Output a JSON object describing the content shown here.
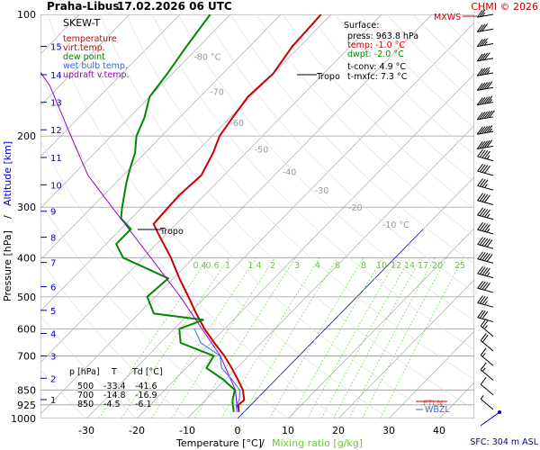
{
  "header": {
    "station": "Praha-Libus",
    "datetime": "17.02.2026 06 UTC",
    "copyright": "CHMI © 2026"
  },
  "legend": {
    "title": "SKEW-T",
    "items": [
      {
        "label": "temperature",
        "color": "#cc0000"
      },
      {
        "label": "virt.temp.",
        "color": "#cc0000"
      },
      {
        "label": "dew point",
        "color": "#008800"
      },
      {
        "label": "wet bulb temp.",
        "color": "#3366ff"
      },
      {
        "label": "updraft v.temp.",
        "color": "#9900cc"
      }
    ]
  },
  "surface": {
    "title": "Surface:",
    "press": "press: 963.8 hPa",
    "temp": "temp: -1.0 °C",
    "dwpt": "dwpt: -2.0 °C",
    "tconv": "t-conv: 4.9 °C",
    "tmxfc": "t-mxfc: 7.3 °C"
  },
  "table": {
    "header": [
      "p [hPa]",
      "T",
      "Td [°C]"
    ],
    "rows": [
      [
        "500",
        "-33.4",
        "-41.6"
      ],
      [
        "700",
        "-14.8",
        "-16.9"
      ],
      [
        "850",
        "-4.5",
        "-6.1"
      ]
    ]
  },
  "axes": {
    "xlabel_temp": "Temperature [°C]",
    "xlabel_sep": "/",
    "xlabel_mix": "Mixing ratio [g/kg]",
    "ylabel_pressure": "Pressure [hPa]",
    "ylabel_sep": "/",
    "ylabel_altitude": "Altitude [km]",
    "sfc": "SFC: 304 m ASL"
  },
  "markers": {
    "tropo1": "Tropo",
    "tropo2": "Tropo",
    "mxws": "MXWS",
    "ftln": "FTLN",
    "wbzl": "WBZL"
  },
  "chart_data": {
    "type": "line",
    "title": "SKEW-T",
    "xlabel": "Temperature [°C] / Mixing ratio [g/kg]",
    "ylabel": "Pressure [hPa] / Altitude [km]",
    "xlim": [
      -35,
      43
    ],
    "ylim": [
      1000,
      100
    ],
    "y_scale": "log",
    "pressure_ticks": [
      100,
      200,
      300,
      400,
      500,
      600,
      700,
      850,
      925,
      1000
    ],
    "temp_ticks": [
      -30,
      -20,
      -10,
      0,
      10,
      20,
      30,
      40
    ],
    "altitude_ticks": [
      1,
      2,
      3,
      4,
      5,
      6,
      7,
      8,
      9,
      10,
      11,
      12,
      13,
      14,
      15
    ],
    "isotherm_labels": [
      "-80 °C",
      "-70",
      "-60",
      "-50",
      "-40",
      "-30",
      "-20",
      "-10 °C"
    ],
    "mixing_ratio_labels": [
      "0.4",
      "0.6",
      "1",
      "1.4",
      "2",
      "3",
      "4",
      "6",
      "8",
      "10",
      "12",
      "14",
      "17",
      "20",
      "25"
    ],
    "series": [
      {
        "name": "temperature",
        "color": "#cc0000",
        "points": [
          [
            963.8,
            -1.0
          ],
          [
            925,
            -2.5
          ],
          [
            900,
            -2.3
          ],
          [
            850,
            -4.5
          ],
          [
            800,
            -7.6
          ],
          [
            750,
            -11.0
          ],
          [
            700,
            -14.8
          ],
          [
            650,
            -19.3
          ],
          [
            600,
            -24.0
          ],
          [
            550,
            -28.6
          ],
          [
            500,
            -33.4
          ],
          [
            450,
            -38.8
          ],
          [
            400,
            -44.5
          ],
          [
            350,
            -51.5
          ],
          [
            330,
            -54.5
          ],
          [
            300,
            -54.8
          ],
          [
            280,
            -55.0
          ],
          [
            250,
            -54.5
          ],
          [
            220,
            -56.5
          ],
          [
            200,
            -58.5
          ],
          [
            180,
            -59.5
          ],
          [
            160,
            -60.5
          ],
          [
            140,
            -60.0
          ],
          [
            120,
            -61.5
          ],
          [
            100,
            -62.0
          ]
        ]
      },
      {
        "name": "dew point",
        "color": "#008800",
        "points": [
          [
            963.8,
            -2.0
          ],
          [
            925,
            -3.6
          ],
          [
            900,
            -4.6
          ],
          [
            850,
            -6.1
          ],
          [
            800,
            -10.5
          ],
          [
            750,
            -16.0
          ],
          [
            700,
            -16.9
          ],
          [
            650,
            -26.0
          ],
          [
            600,
            -29.0
          ],
          [
            570,
            -26.0
          ],
          [
            550,
            -37.0
          ],
          [
            500,
            -41.6
          ],
          [
            450,
            -41.0
          ],
          [
            400,
            -54.0
          ],
          [
            370,
            -58.0
          ],
          [
            340,
            -58.0
          ],
          [
            320,
            -62.0
          ],
          [
            300,
            -64.0
          ],
          [
            260,
            -68.0
          ],
          [
            240,
            -70.0
          ],
          [
            220,
            -72.0
          ],
          [
            200,
            -75.0
          ],
          [
            180,
            -77.0
          ],
          [
            160,
            -80.0
          ],
          [
            140,
            -81.0
          ],
          [
            120,
            -82.5
          ],
          [
            100,
            -84.0
          ]
        ]
      },
      {
        "name": "updraft v.temp.",
        "color": "#9900cc",
        "points": [
          [
            963.8,
            -1.0
          ],
          [
            925,
            -2.8
          ],
          [
            850,
            -6.0
          ],
          [
            700,
            -15.6
          ],
          [
            600,
            -24.5
          ],
          [
            500,
            -35.0
          ],
          [
            400,
            -48.5
          ],
          [
            300,
            -66.0
          ],
          [
            250,
            -77.0
          ],
          [
            200,
            -88.0
          ],
          [
            150,
            -102.0
          ],
          [
            120,
            -115.0
          ]
        ]
      }
    ],
    "wind_barbs_kt": [
      5,
      10,
      15,
      15,
      20,
      25,
      30,
      35,
      40,
      45,
      50,
      50,
      45,
      45,
      40,
      35,
      40,
      45,
      50,
      55,
      60,
      55,
      50,
      45,
      40,
      35,
      30,
      25
    ],
    "tropopause_hpa": [
      340,
      130
    ]
  }
}
